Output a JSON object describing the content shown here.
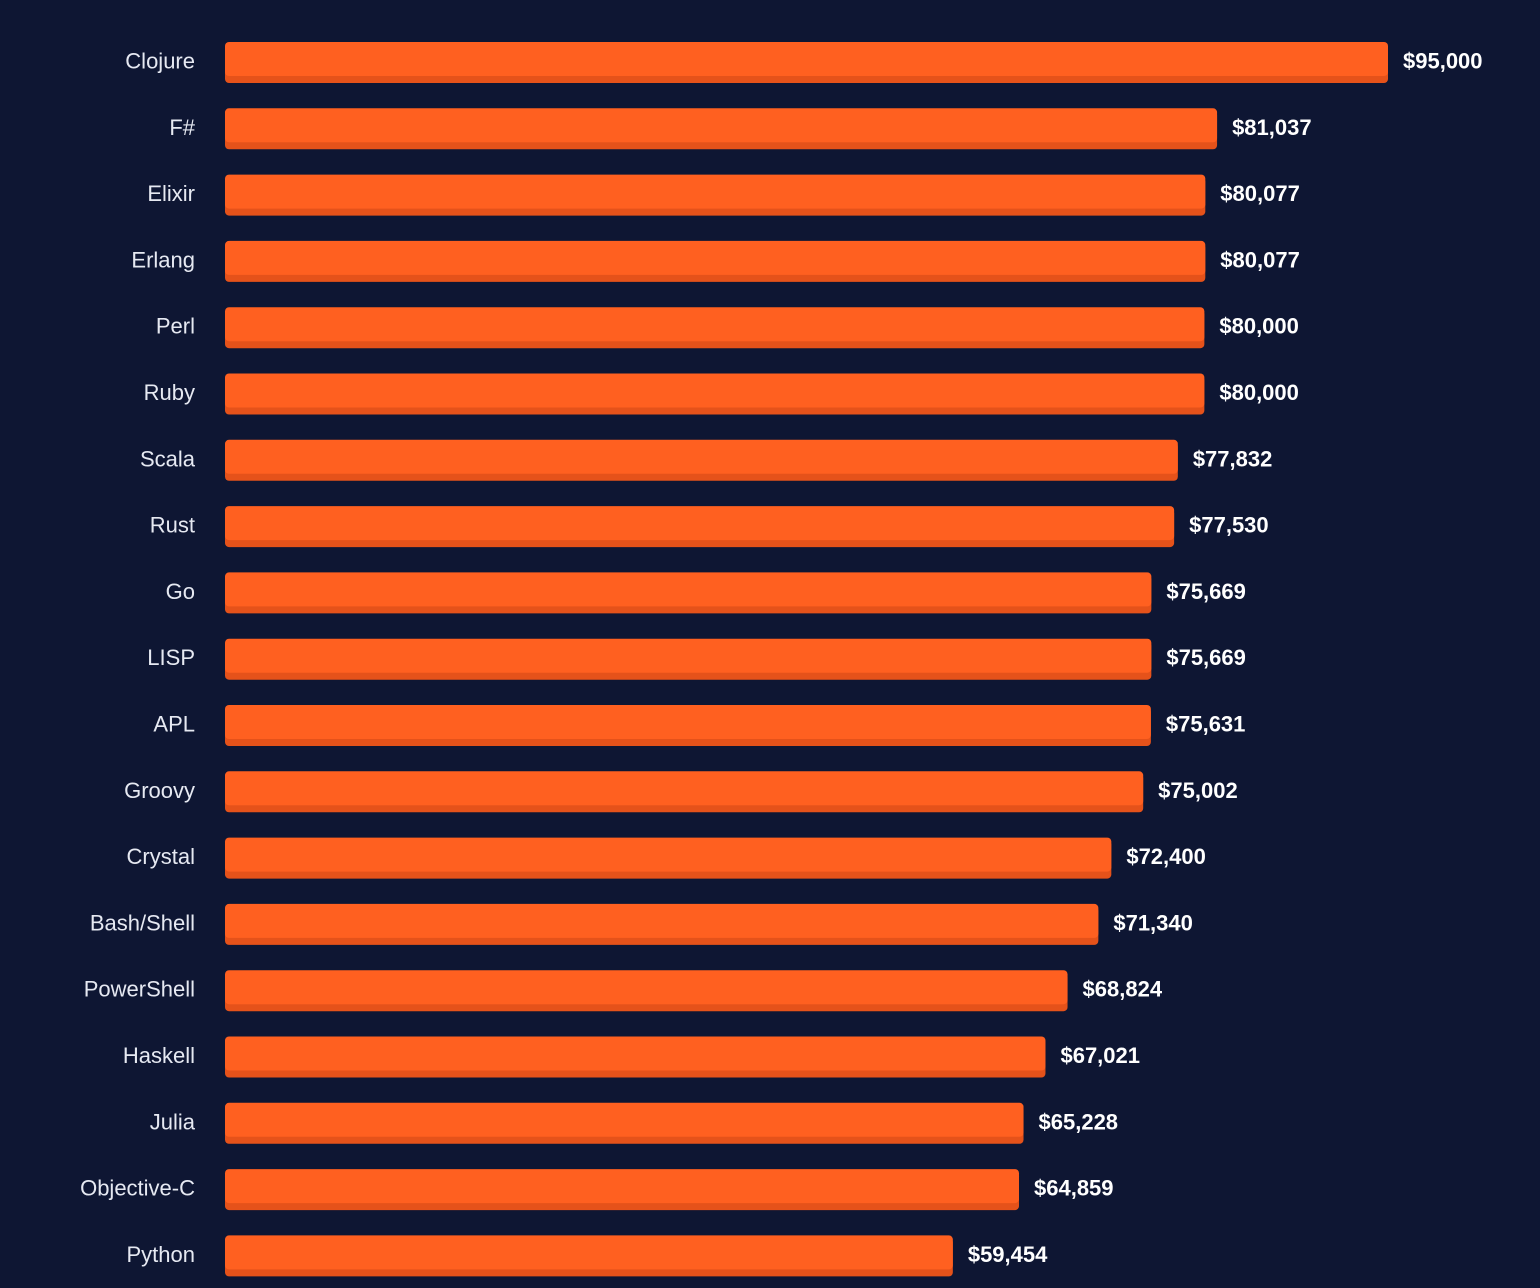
{
  "chart_data": {
    "type": "bar",
    "orientation": "horizontal",
    "categories": [
      "Clojure",
      "F#",
      "Elixir",
      "Erlang",
      "Perl",
      "Ruby",
      "Scala",
      "Rust",
      "Go",
      "LISP",
      "APL",
      "Groovy",
      "Crystal",
      "Bash/Shell",
      "PowerShell",
      "Haskell",
      "Julia",
      "Objective-C",
      "Python"
    ],
    "values": [
      95000,
      81037,
      80077,
      80077,
      80000,
      80000,
      77832,
      77530,
      75669,
      75669,
      75631,
      75002,
      72400,
      71340,
      68824,
      67021,
      65228,
      64859,
      59454
    ],
    "value_labels": [
      "$95,000",
      "$81,037",
      "$80,077",
      "$80,077",
      "$80,000",
      "$80,000",
      "$77,832",
      "$77,530",
      "$75,669",
      "$75,669",
      "$75,631",
      "$75,002",
      "$72,400",
      "$71,340",
      "$68,824",
      "$67,021",
      "$65,228",
      "$64,859",
      "$59,454"
    ],
    "xlim": [
      0,
      95000
    ],
    "grid": false,
    "legend": false
  },
  "colors": {
    "background": "#0e1633",
    "bar": "#ff6020",
    "bar_shadow": "#e5521a",
    "label": "#e6e9f2",
    "value": "#ffffff"
  }
}
